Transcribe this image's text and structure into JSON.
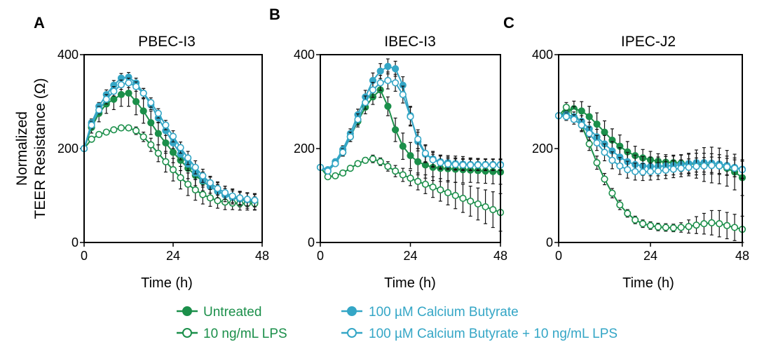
{
  "colors": {
    "green": "#1b8f4a",
    "blue": "#34a6c6"
  },
  "figure": {
    "ylabel_line1": "Normalized",
    "ylabel_line2": "TEER Resistance (Ω)"
  },
  "chart_data": [
    {
      "type": "line",
      "letter": "A",
      "title": "PBEC-I3",
      "xlabel": "Time (h)",
      "xlim": [
        0,
        48
      ],
      "ylim": [
        0,
        400
      ],
      "xticks": [
        0,
        24,
        48
      ],
      "yticks": [
        0,
        200,
        400
      ],
      "xtick_labels": [
        "0",
        "24",
        "48"
      ],
      "ytick_labels": [
        "0",
        "200",
        "400"
      ],
      "x": [
        0,
        2,
        4,
        6,
        8,
        10,
        12,
        14,
        16,
        18,
        20,
        22,
        24,
        26,
        28,
        30,
        32,
        34,
        36,
        38,
        40,
        42,
        44,
        46
      ],
      "series": [
        {
          "name": "Untreated",
          "color": "green",
          "filled": true,
          "values": [
            200,
            245,
            275,
            295,
            305,
            315,
            318,
            300,
            280,
            255,
            232,
            212,
            192,
            175,
            158,
            143,
            130,
            119,
            109,
            102,
            96,
            92,
            89,
            86
          ],
          "errors": [
            0,
            12,
            18,
            20,
            22,
            25,
            28,
            28,
            26,
            25,
            24,
            22,
            22,
            22,
            22,
            22,
            20,
            20,
            18,
            18,
            18,
            16,
            16,
            16
          ]
        },
        {
          "name": "10 ng/mL LPS",
          "color": "green",
          "filled": false,
          "values": [
            200,
            220,
            230,
            235,
            240,
            244,
            244,
            238,
            225,
            208,
            190,
            172,
            155,
            138,
            124,
            112,
            102,
            95,
            89,
            86,
            84,
            83,
            83,
            83
          ],
          "errors": [
            0,
            5,
            5,
            5,
            5,
            5,
            5,
            8,
            10,
            14,
            18,
            22,
            24,
            24,
            24,
            22,
            20,
            18,
            16,
            16,
            14,
            14,
            14,
            14
          ]
        },
        {
          "name": "100 µM Calcium Butyrate",
          "color": "blue",
          "filled": true,
          "values": [
            200,
            255,
            290,
            315,
            335,
            350,
            352,
            340,
            318,
            293,
            265,
            238,
            212,
            188,
            167,
            148,
            132,
            119,
            109,
            101,
            96,
            93,
            91,
            90
          ],
          "errors": [
            0,
            8,
            8,
            10,
            10,
            10,
            10,
            10,
            10,
            10,
            10,
            10,
            12,
            12,
            14,
            14,
            14,
            14,
            14,
            14,
            14,
            14,
            14,
            14
          ]
        },
        {
          "name": "100 µM Calcium Butyrate + 10 ng/mL LPS",
          "color": "blue",
          "filled": false,
          "values": [
            200,
            250,
            282,
            305,
            322,
            336,
            340,
            332,
            318,
            298,
            275,
            250,
            226,
            202,
            180,
            160,
            142,
            127,
            115,
            106,
            99,
            95,
            92,
            90
          ],
          "errors": [
            0,
            8,
            8,
            10,
            10,
            10,
            10,
            10,
            10,
            10,
            10,
            10,
            12,
            12,
            14,
            14,
            14,
            14,
            14,
            14,
            14,
            14,
            14,
            14
          ]
        }
      ]
    },
    {
      "type": "line",
      "letter": "B",
      "title": "IBEC-I3",
      "xlabel": "Time (h)",
      "xlim": [
        0,
        48
      ],
      "ylim": [
        0,
        400
      ],
      "xticks": [
        0,
        24,
        48
      ],
      "yticks": [
        0,
        200,
        400
      ],
      "xtick_labels": [
        "0",
        "24",
        "48"
      ],
      "ytick_labels": [
        "0",
        "200",
        "400"
      ],
      "x": [
        0,
        2,
        4,
        6,
        8,
        10,
        12,
        14,
        16,
        18,
        20,
        22,
        24,
        26,
        28,
        30,
        32,
        34,
        36,
        38,
        40,
        42,
        44,
        46,
        48
      ],
      "series": [
        {
          "name": "Untreated",
          "color": "green",
          "filled": true,
          "values": [
            160,
            152,
            168,
            192,
            225,
            258,
            288,
            310,
            325,
            290,
            240,
            205,
            185,
            172,
            165,
            160,
            158,
            157,
            156,
            155,
            154,
            153,
            152,
            151,
            150
          ],
          "errors": [
            0,
            5,
            5,
            8,
            10,
            12,
            14,
            16,
            16,
            20,
            25,
            28,
            28,
            28,
            28,
            28,
            28,
            28,
            28,
            28,
            26,
            26,
            26,
            26,
            26
          ]
        },
        {
          "name": "10 ng/mL LPS",
          "color": "green",
          "filled": false,
          "values": [
            160,
            140,
            142,
            148,
            158,
            168,
            175,
            178,
            172,
            162,
            152,
            144,
            137,
            130,
            124,
            118,
            112,
            106,
            100,
            94,
            88,
            82,
            76,
            70,
            64
          ],
          "errors": [
            0,
            4,
            4,
            4,
            5,
            5,
            6,
            8,
            8,
            10,
            12,
            14,
            16,
            18,
            20,
            22,
            24,
            26,
            28,
            30,
            32,
            34,
            36,
            38,
            40
          ]
        },
        {
          "name": "100 µM Calcium Butyrate",
          "color": "blue",
          "filled": true,
          "values": [
            160,
            155,
            172,
            198,
            232,
            272,
            310,
            345,
            365,
            375,
            370,
            335,
            270,
            215,
            188,
            178,
            172,
            170,
            168,
            167,
            166,
            166,
            166,
            166,
            166
          ],
          "errors": [
            0,
            5,
            6,
            8,
            10,
            12,
            14,
            16,
            16,
            16,
            16,
            18,
            20,
            20,
            18,
            16,
            14,
            12,
            12,
            12,
            12,
            12,
            12,
            12,
            12
          ]
        },
        {
          "name": "100 µM Calcium Butyrate + 10 ng/mL LPS",
          "color": "blue",
          "filled": false,
          "values": [
            160,
            152,
            168,
            192,
            225,
            262,
            298,
            325,
            340,
            345,
            340,
            315,
            268,
            220,
            190,
            176,
            170,
            167,
            166,
            165,
            165,
            165,
            165,
            165,
            165
          ],
          "errors": [
            0,
            5,
            6,
            8,
            10,
            12,
            14,
            16,
            16,
            18,
            18,
            18,
            20,
            20,
            18,
            16,
            14,
            12,
            12,
            12,
            12,
            12,
            12,
            12,
            12
          ]
        }
      ]
    },
    {
      "type": "line",
      "letter": "C",
      "title": "IPEC-J2",
      "xlabel": "Time (h)",
      "xlim": [
        0,
        48
      ],
      "ylim": [
        0,
        400
      ],
      "xticks": [
        0,
        24,
        48
      ],
      "yticks": [
        0,
        200,
        400
      ],
      "xtick_labels": [
        "0",
        "24",
        "48"
      ],
      "ytick_labels": [
        "0",
        "200",
        "400"
      ],
      "x": [
        0,
        2,
        4,
        6,
        8,
        10,
        12,
        14,
        16,
        18,
        20,
        22,
        24,
        26,
        28,
        30,
        32,
        34,
        36,
        38,
        40,
        42,
        44,
        46,
        48
      ],
      "series": [
        {
          "name": "Untreated",
          "color": "green",
          "filled": true,
          "values": [
            270,
            278,
            285,
            280,
            268,
            252,
            235,
            218,
            205,
            193,
            185,
            180,
            176,
            173,
            171,
            170,
            169,
            168,
            167,
            166,
            165,
            163,
            158,
            150,
            138
          ],
          "errors": [
            0,
            12,
            16,
            20,
            22,
            24,
            24,
            24,
            24,
            22,
            20,
            18,
            18,
            16,
            16,
            16,
            18,
            22,
            30,
            36,
            38,
            38,
            38,
            38,
            38
          ]
        },
        {
          "name": "10 ng/mL LPS",
          "color": "green",
          "filled": false,
          "values": [
            270,
            288,
            278,
            250,
            210,
            170,
            135,
            105,
            80,
            62,
            48,
            40,
            36,
            33,
            32,
            31,
            32,
            34,
            37,
            40,
            42,
            40,
            36,
            32,
            28
          ],
          "errors": [
            0,
            10,
            12,
            14,
            14,
            14,
            12,
            10,
            10,
            8,
            8,
            8,
            8,
            8,
            8,
            8,
            10,
            14,
            18,
            22,
            26,
            28,
            28,
            28,
            28
          ]
        },
        {
          "name": "100 µM Calcium Butyrate",
          "color": "blue",
          "filled": true,
          "values": [
            270,
            272,
            268,
            258,
            242,
            225,
            210,
            195,
            182,
            172,
            166,
            163,
            162,
            162,
            163,
            164,
            166,
            168,
            170,
            170,
            169,
            167,
            164,
            160,
            156
          ],
          "errors": [
            0,
            8,
            10,
            12,
            14,
            16,
            18,
            20,
            20,
            20,
            20,
            20,
            20,
            20,
            20,
            20,
            20,
            20,
            20,
            20,
            20,
            20,
            20,
            20,
            20
          ]
        },
        {
          "name": "100 µM Calcium Butyrate + 10 ng/mL LPS",
          "color": "blue",
          "filled": false,
          "values": [
            270,
            268,
            262,
            250,
            232,
            212,
            192,
            175,
            163,
            155,
            151,
            150,
            151,
            152,
            154,
            156,
            158,
            160,
            162,
            163,
            164,
            163,
            161,
            158,
            155
          ],
          "errors": [
            0,
            8,
            10,
            12,
            14,
            16,
            18,
            18,
            18,
            18,
            18,
            18,
            18,
            18,
            18,
            18,
            18,
            18,
            18,
            18,
            18,
            18,
            18,
            18,
            18
          ]
        }
      ]
    }
  ],
  "legend": {
    "position": "bottom",
    "items": [
      {
        "label": "Untreated",
        "color": "green",
        "filled": true
      },
      {
        "label": "10 ng/mL LPS",
        "color": "green",
        "filled": false
      },
      {
        "label": "100 µM Calcium Butyrate",
        "color": "blue",
        "filled": true
      },
      {
        "label": "100 µM Calcium Butyrate + 10 ng/mL LPS",
        "color": "blue",
        "filled": false
      }
    ]
  }
}
